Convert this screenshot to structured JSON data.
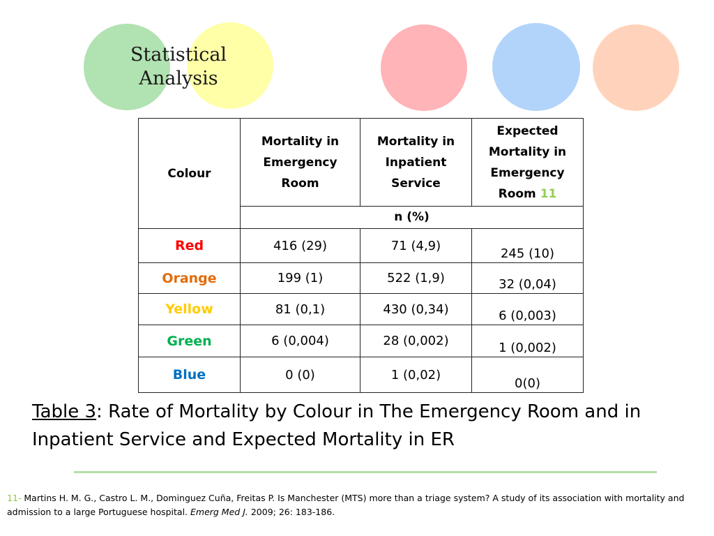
{
  "slide": {
    "title_line1": "Statistical",
    "title_line2": "Analysis"
  },
  "colors": {
    "circle_green": "#b1e2b1",
    "circle_yellow": "#ffffa8",
    "circle_pink": "#ffb4b8",
    "circle_blue": "#b3d4fa",
    "circle_peach": "#ffd3bb"
  },
  "table": {
    "headers": {
      "colour": "Colour",
      "mortality_er_line1": "Mortality in",
      "mortality_er_line2": "Emergency",
      "mortality_er_line3": "Room",
      "mortality_inpatient_line1": "Mortality in",
      "mortality_inpatient_line2": "Inpatient",
      "mortality_inpatient_line3": "Service",
      "expected_line1": "Expected",
      "expected_line2": "Mortality in",
      "expected_line3": "Emergency",
      "expected_line4": "Room",
      "expected_ref": "11",
      "unit": "n (%)"
    },
    "rows": [
      {
        "colour": "Red",
        "er": "416 (29)",
        "inpatient": "71 (4,9)",
        "expected": "245 (10)"
      },
      {
        "colour": "Orange",
        "er": "199 (1)",
        "inpatient": "522 (1,9)",
        "expected": "32 (0,04)"
      },
      {
        "colour": "Yellow",
        "er": "81 (0,1)",
        "inpatient": "430 (0,34)",
        "expected": "6 (0,003)"
      },
      {
        "colour": "Green",
        "er": "6 (0,004)",
        "inpatient": "28 (0,002)",
        "expected": "1 (0,002)"
      },
      {
        "colour": "Blue",
        "er": "0 (0)",
        "inpatient": "1 (0,02)",
        "expected": "0(0)"
      }
    ]
  },
  "caption": {
    "label": "Table 3",
    "text": ": Rate of Mortality by Colour in The Emergency Room and in Inpatient Service and Expected Mortality in ER"
  },
  "reference": {
    "number": "11-",
    "text": " Martins H. M. G., Castro L. M., Dominguez Cuña, Freitas P. Is Manchester (MTS) more than a triage system? A study of its association with mortality and admission to a large Portuguese hospital. ",
    "journal": "Emerg Med J.",
    "citation": " 2009; 26: 183-186."
  }
}
